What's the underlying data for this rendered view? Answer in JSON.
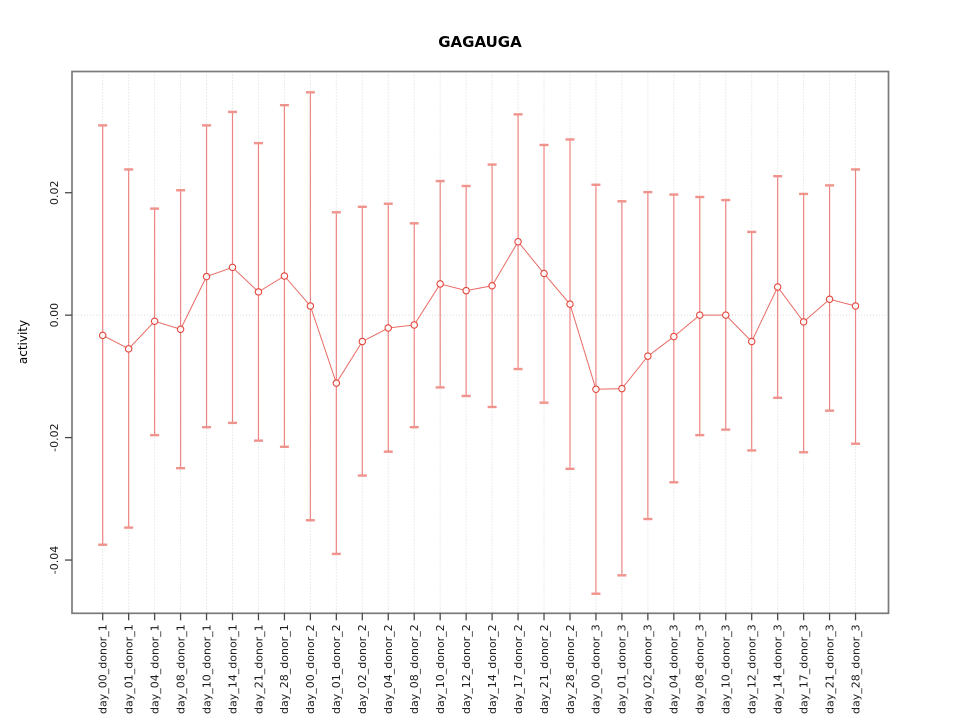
{
  "chart_data": {
    "type": "line",
    "title": "GAGAUGA",
    "xlabel": "",
    "ylabel": "activity",
    "categories": [
      "day_00_donor_1",
      "day_01_donor_1",
      "day_04_donor_1",
      "day_08_donor_1",
      "day_10_donor_1",
      "day_14_donor_1",
      "day_21_donor_1",
      "day_28_donor_1",
      "day_00_donor_2",
      "day_01_donor_2",
      "day_02_donor_2",
      "day_04_donor_2",
      "day_08_donor_2",
      "day_10_donor_2",
      "day_12_donor_2",
      "day_14_donor_2",
      "day_17_donor_2",
      "day_21_donor_2",
      "day_28_donor_2",
      "day_00_donor_3",
      "day_01_donor_3",
      "day_02_donor_3",
      "day_04_donor_3",
      "day_08_donor_3",
      "day_10_donor_3",
      "day_12_donor_3",
      "day_14_donor_3",
      "day_17_donor_3",
      "day_21_donor_3",
      "day_28_donor_3"
    ],
    "series": [
      {
        "name": "activity",
        "values": [
          -0.0033,
          -0.0055,
          -0.001,
          -0.0023,
          0.0063,
          0.0078,
          0.0038,
          0.0064,
          0.0015,
          -0.0111,
          -0.0043,
          -0.0021,
          -0.0016,
          0.0051,
          0.004,
          0.0048,
          0.012,
          0.0068,
          0.0018,
          -0.0121,
          -0.012,
          -0.0067,
          -0.0035,
          0.0,
          0.0,
          -0.0043,
          0.0046,
          -0.0011,
          0.0026,
          0.0015
        ],
        "error_low": [
          -0.0375,
          -0.0347,
          -0.0196,
          -0.025,
          -0.0183,
          -0.0176,
          -0.0205,
          -0.0215,
          -0.0335,
          -0.039,
          -0.0262,
          -0.0223,
          -0.0183,
          -0.0118,
          -0.0132,
          -0.015,
          -0.0088,
          -0.0143,
          -0.0251,
          -0.0455,
          -0.0425,
          -0.0333,
          -0.0273,
          -0.0196,
          -0.0187,
          -0.0221,
          -0.0135,
          -0.0224,
          -0.0156,
          -0.021
        ],
        "error_high": [
          0.031,
          0.0238,
          0.0174,
          0.0204,
          0.031,
          0.0332,
          0.0281,
          0.0343,
          0.0364,
          0.0168,
          0.0177,
          0.0182,
          0.015,
          0.0219,
          0.0211,
          0.0246,
          0.0328,
          0.0278,
          0.0287,
          0.0213,
          0.0186,
          0.0201,
          0.0197,
          0.0193,
          0.0188,
          0.0136,
          0.0227,
          0.0198,
          0.0212,
          0.0238
        ]
      }
    ],
    "ylim": [
      -0.0487,
      0.0398
    ],
    "yticks": [
      0.02,
      0.0,
      -0.02,
      -0.04
    ],
    "ytick_labels": [
      "0.02",
      "0.00",
      "-0.02",
      "-0.04"
    ],
    "grid": "dotted vertical line at each category; dotted horizontal line at y=0",
    "legend": "none",
    "marker": "open-circle",
    "colors": {
      "series": "#e2453c",
      "error_bar": "#e8413b",
      "error_cap": "#f0938c",
      "gridline": "#d9d9d9",
      "box": "#7a7a7a",
      "tick": "#4a4a4a",
      "background": "#ffffff"
    }
  }
}
